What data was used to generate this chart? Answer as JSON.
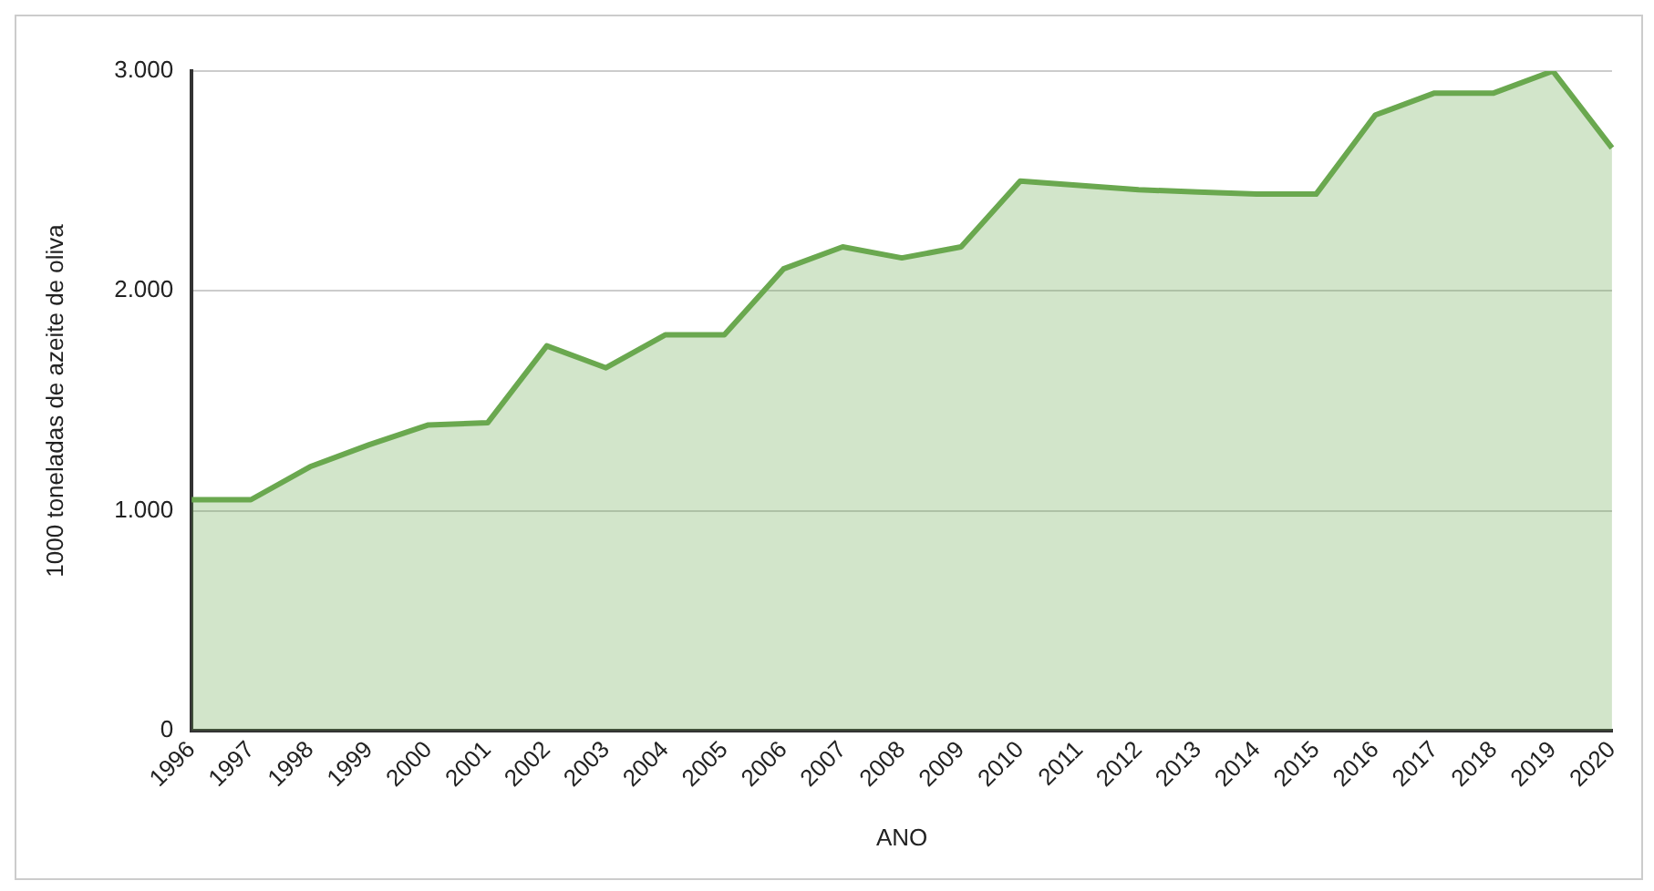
{
  "chart_data": {
    "type": "area",
    "xlabel": "ANO",
    "ylabel": "1000 toneladas de azeite de oliva",
    "categories": [
      "1996",
      "1997",
      "1998",
      "1999",
      "2000",
      "2001",
      "2002",
      "2003",
      "2004",
      "2005",
      "2006",
      "2007",
      "2008",
      "2009",
      "2010",
      "2011",
      "2012",
      "2013",
      "2014",
      "2015",
      "2016",
      "2017",
      "2018",
      "2019",
      "2020"
    ],
    "series": [
      {
        "color": "#6aa84f",
        "values": [
          1050,
          1050,
          1200,
          1300,
          1390,
          1400,
          1750,
          1650,
          1800,
          1800,
          2100,
          2200,
          2150,
          2200,
          2500,
          2480,
          2460,
          2450,
          2440,
          2440,
          2800,
          2900,
          2900,
          3000,
          2650
        ]
      }
    ],
    "ylim": [
      0,
      3000
    ],
    "yticks": [
      {
        "value": 0,
        "label": "0"
      },
      {
        "value": 1000,
        "label": "1.000"
      },
      {
        "value": 2000,
        "label": "2.000"
      },
      {
        "value": 3000,
        "label": "3.000"
      }
    ],
    "grid": "y",
    "legend": false
  }
}
